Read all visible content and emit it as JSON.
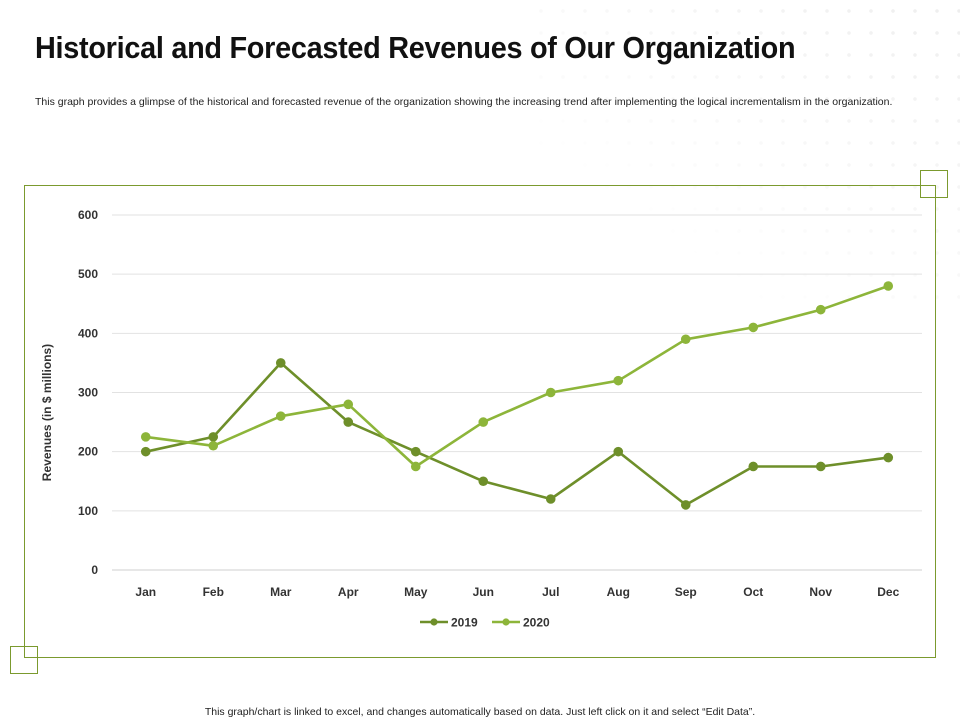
{
  "header": {
    "title": "Historical and Forecasted Revenues of Our Organization",
    "subtitle": "This graph provides a glimpse of the historical and forecasted revenue of the organization showing the increasing trend after implementing the logical incrementalism in the organization."
  },
  "footer": {
    "note": "This graph/chart is linked to excel, and changes automatically based on data. Just left click on it and select “Edit Data”."
  },
  "chart_data": {
    "type": "line",
    "title": "",
    "xlabel": "",
    "ylabel": "Revenues (in $ millions)",
    "categories": [
      "Jan",
      "Feb",
      "Mar",
      "Apr",
      "May",
      "Jun",
      "Jul",
      "Aug",
      "Sep",
      "Oct",
      "Nov",
      "Dec"
    ],
    "ylim": [
      0,
      600
    ],
    "yticks": [
      0,
      100,
      200,
      300,
      400,
      500,
      600
    ],
    "grid": true,
    "legend": "bottom-center",
    "series": [
      {
        "name": "2019",
        "color": "#6e8f2a",
        "values": [
          200,
          225,
          350,
          250,
          200,
          150,
          120,
          200,
          110,
          175,
          175,
          190
        ]
      },
      {
        "name": "2020",
        "color": "#8db53a",
        "values": [
          225,
          210,
          260,
          280,
          175,
          250,
          300,
          320,
          390,
          410,
          440,
          480
        ]
      }
    ]
  }
}
